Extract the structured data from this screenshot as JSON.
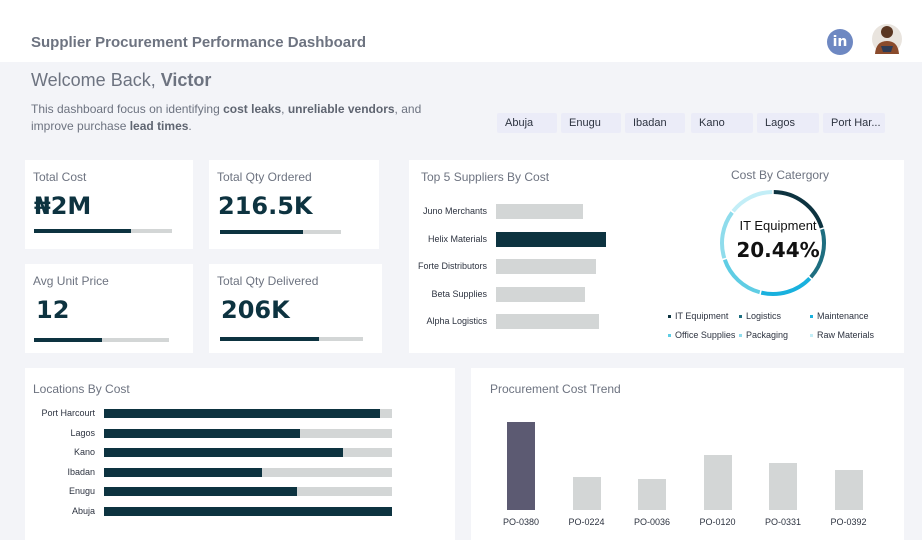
{
  "header": {
    "title": "Supplier Procurement Performance Dashboard",
    "linkedin_glyph": "in",
    "linkedin_icon": "linkedin-icon",
    "avatar_icon": "user-avatar"
  },
  "welcome": {
    "prefix": "Welcome Back, ",
    "name": "Victor"
  },
  "intro": {
    "t1": "This dashboard focus on identifying ",
    "b1": "cost leaks",
    "t2": ", ",
    "b2": "unreliable vendors",
    "t3": ", and improve purchase ",
    "b3": "lead times",
    "t4": "."
  },
  "slicers": [
    "Abuja",
    "Enugu",
    "Ibadan",
    "Kano",
    "Lagos",
    "Port Har..."
  ],
  "kpis": {
    "total_cost": {
      "label": "Total Cost",
      "value": "₦2M",
      "progress": 0.7
    },
    "total_qty_ordered": {
      "label": "Total Qty Ordered",
      "value": "216.5K",
      "progress": 0.69
    },
    "avg_unit_price": {
      "label": "Avg Unit Price",
      "value": "12",
      "progress": 0.5
    },
    "total_qty_delivered": {
      "label": "Total Qty Delivered",
      "value": "206K",
      "progress": 0.69
    }
  },
  "colors": {
    "dark": "#0d3340",
    "track": "#d3d6d6",
    "trend_highlight": "#5c5a72",
    "it_equipment": "#0d3340",
    "logistics": "#1e6e80",
    "maintenance": "#19b1de",
    "office_supplies": "#5fcde4",
    "packaging": "#8fdcec",
    "raw_materials": "#c3eef7"
  },
  "chart_data": [
    {
      "type": "bar",
      "orientation": "horizontal",
      "title": "Top 5 Suppliers By Cost",
      "categories": [
        "Juno Merchants",
        "Helix Materials",
        "Forte Distributors",
        "Beta Supplies",
        "Alpha Logistics"
      ],
      "values": [
        0.79,
        1.0,
        0.91,
        0.81,
        0.94
      ],
      "highlight": "Helix Materials",
      "xlim": [
        0,
        1
      ]
    },
    {
      "type": "pie",
      "title": "Cost By Catergory",
      "center_label": "IT Equipment",
      "center_value": "20.44%",
      "categories": [
        "IT Equipment",
        "Logistics",
        "Maintenance",
        "Office Supplies",
        "Packaging",
        "Raw Materials"
      ],
      "values": [
        20.44,
        16.5,
        17.0,
        16.0,
        15.5,
        14.56
      ]
    },
    {
      "type": "bar",
      "orientation": "horizontal",
      "title": "Locations By Cost",
      "categories": [
        "Port Harcourt",
        "Lagos",
        "Kano",
        "Ibadan",
        "Enugu",
        "Abuja"
      ],
      "values": [
        0.96,
        0.68,
        0.83,
        0.55,
        0.67,
        1.0
      ],
      "xlim": [
        0,
        1
      ]
    },
    {
      "type": "bar",
      "title": "Procurement Cost Trend",
      "categories": [
        "PO-0380",
        "PO-0224",
        "PO-0036",
        "PO-0120",
        "PO-0331",
        "PO-0392"
      ],
      "values": [
        1.0,
        0.37,
        0.35,
        0.62,
        0.53,
        0.46
      ],
      "highlight": "PO-0380",
      "ylim": [
        0,
        1
      ]
    }
  ]
}
